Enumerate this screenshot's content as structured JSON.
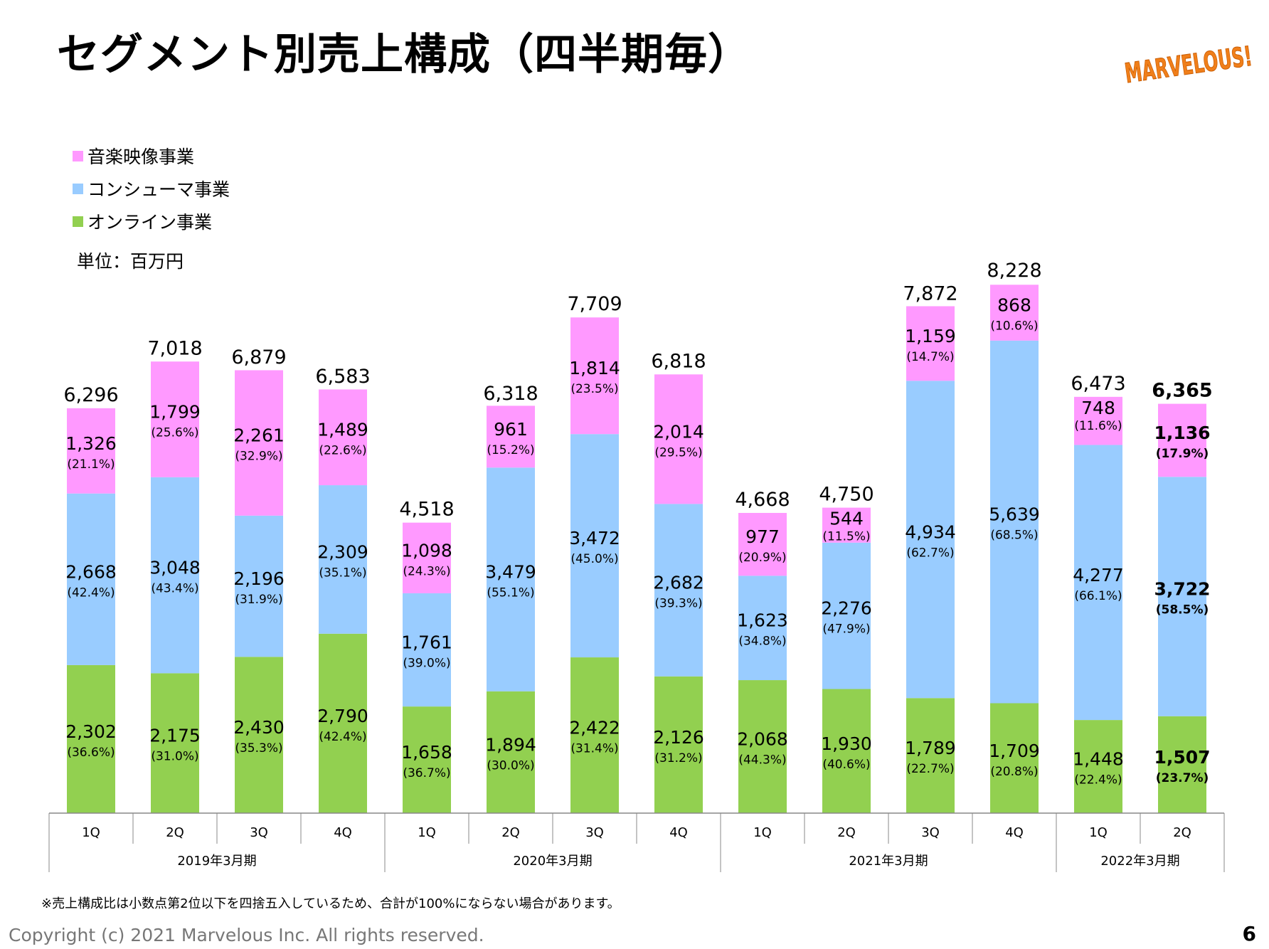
{
  "slide": {
    "title": "セグメント別売上構成（四半期毎）",
    "logo_text": "MARVELOUS!",
    "unit_label": "単位：百万円",
    "note": "※売上構成比は小数点第2位以下を四捨五入しているため、合計が100%にならない場合があります。",
    "copyright": "Copyright (c) 2021 Marvelous Inc. All rights reserved.",
    "page_number": "6"
  },
  "colors": {
    "music": "#ff99ff",
    "consumer": "#99ccff",
    "online": "#92d050",
    "logo": "#f07f1a"
  },
  "chart_data": {
    "type": "bar",
    "stacked": true,
    "legend_position": "top-left",
    "categories": [
      "1Q",
      "2Q",
      "3Q",
      "4Q",
      "1Q",
      "2Q",
      "3Q",
      "4Q",
      "1Q",
      "2Q",
      "3Q",
      "4Q",
      "1Q",
      "2Q"
    ],
    "groups": [
      {
        "label": "2019年3月期",
        "size": 4
      },
      {
        "label": "2020年3月期",
        "size": 4
      },
      {
        "label": "2021年3月期",
        "size": 4
      },
      {
        "label": "2022年3月期",
        "size": 2
      }
    ],
    "series": [
      {
        "name": "オンライン事業",
        "key": "online",
        "values": [
          2302,
          2175,
          2430,
          2790,
          1658,
          1894,
          2422,
          2126,
          2068,
          1930,
          1789,
          1709,
          1448,
          1507
        ],
        "labels": [
          "2,302",
          "2,175",
          "2,430",
          "2,790",
          "1,658",
          "1,894",
          "2,422",
          "2,126",
          "2,068",
          "1,930",
          "1,789",
          "1,709",
          "1,448",
          "1,507"
        ],
        "pct": [
          "(36.6%)",
          "(31.0%)",
          "(35.3%)",
          "(42.4%)",
          "(36.7%)",
          "(30.0%)",
          "(31.4%)",
          "(31.2%)",
          "(44.3%)",
          "(40.6%)",
          "(22.7%)",
          "(20.8%)",
          "(22.4%)",
          "(23.7%)"
        ]
      },
      {
        "name": "コンシューマ事業",
        "key": "consumer",
        "values": [
          2668,
          3048,
          2196,
          2309,
          1761,
          3479,
          3472,
          2682,
          1623,
          2276,
          4934,
          5639,
          4277,
          3722
        ],
        "labels": [
          "2,668",
          "3,048",
          "2,196",
          "2,309",
          "1,761",
          "3,479",
          "3,472",
          "2,682",
          "1,623",
          "2,276",
          "4,934",
          "5,639",
          "4,277",
          "3,722"
        ],
        "pct": [
          "(42.4%)",
          "(43.4%)",
          "(31.9%)",
          "(35.1%)",
          "(39.0%)",
          "(55.1%)",
          "(45.0%)",
          "(39.3%)",
          "(34.8%)",
          "(47.9%)",
          "(62.7%)",
          "(68.5%)",
          "(66.1%)",
          "(58.5%)"
        ]
      },
      {
        "name": "音楽映像事業",
        "key": "music",
        "values": [
          1326,
          1799,
          2261,
          1489,
          1098,
          961,
          1814,
          2014,
          977,
          544,
          1159,
          868,
          748,
          1136
        ],
        "labels": [
          "1,326",
          "1,799",
          "2,261",
          "1,489",
          "1,098",
          "961",
          "1,814",
          "2,014",
          "977",
          "544",
          "1,159",
          "868",
          "748",
          "1,136"
        ],
        "pct": [
          "(21.1%)",
          "(25.6%)",
          "(32.9%)",
          "(22.6%)",
          "(24.3%)",
          "(15.2%)",
          "(23.5%)",
          "(29.5%)",
          "(20.9%)",
          "(11.5%)",
          "(14.7%)",
          "(10.6%)",
          "(11.6%)",
          "(17.9%)"
        ]
      }
    ],
    "totals": [
      6296,
      7018,
      6879,
      6583,
      4518,
      6318,
      7709,
      6818,
      4668,
      4750,
      7872,
      8228,
      6473,
      6365
    ],
    "total_labels": [
      "6,296",
      "7,018",
      "6,879",
      "6,583",
      "4,518",
      "6,318",
      "7,709",
      "6,818",
      "4,668",
      "4,750",
      "7,872",
      "8,228",
      "6,473",
      "6,365"
    ],
    "highlight_last": true,
    "ylim": [
      0,
      8228
    ]
  }
}
